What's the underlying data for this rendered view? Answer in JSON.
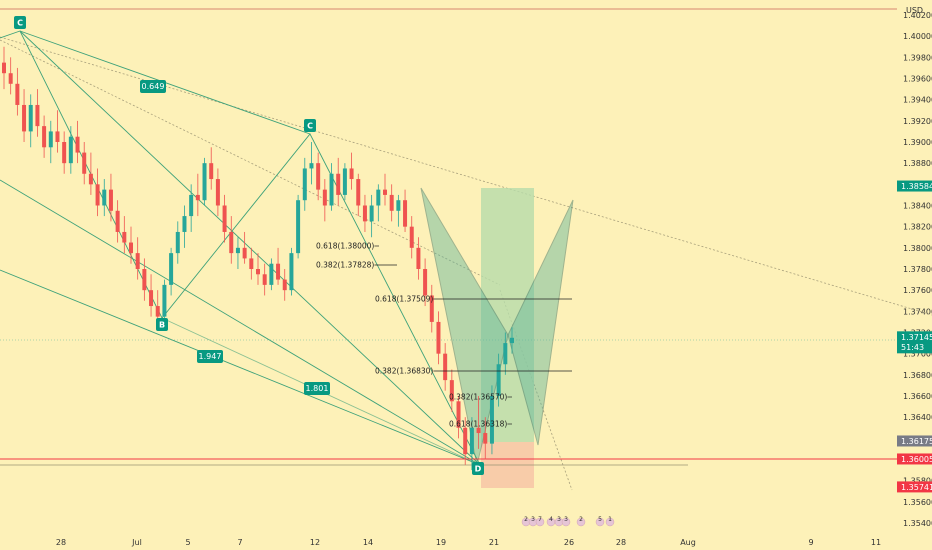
{
  "chart_data": {
    "type": "candlestick",
    "currency_label": "USD",
    "y_ticks": [
      "1.40200",
      "1.40000",
      "1.39800",
      "1.39600",
      "1.39400",
      "1.39200",
      "1.39000",
      "1.38800",
      "1.38600",
      "1.38400",
      "1.38200",
      "1.38000",
      "1.37800",
      "1.37600",
      "1.37400",
      "1.37200",
      "1.37000",
      "1.36800",
      "1.36600",
      "1.36400",
      "1.36200",
      "1.36000",
      "1.35800",
      "1.35600",
      "1.35400"
    ],
    "ylim": [
      1.354,
      1.402
    ],
    "x_ticks": [
      "28",
      "Jul",
      "5",
      "7",
      "12",
      "14",
      "19",
      "21",
      "26",
      "28",
      "Aug",
      "9",
      "11"
    ],
    "price_tags": [
      {
        "value": "1.38584",
        "price": 1.38584,
        "color": "#089981"
      },
      {
        "value": "1.37145",
        "sub": "51:43",
        "price": 1.37145,
        "color": "#089981"
      },
      {
        "value": "1.36175",
        "price": 1.36175,
        "color": "#787b86"
      },
      {
        "value": "1.36005",
        "price": 1.36005,
        "color": "#f23645"
      },
      {
        "value": "1.35741",
        "price": 1.35741,
        "color": "#f23645"
      }
    ],
    "point_labels": [
      "C",
      "C",
      "B",
      "D"
    ],
    "ratio_labels": [
      "0.649",
      "1.947",
      "1.801"
    ],
    "fib_labels": [
      "0.618(1.38000)",
      "0.382(1.37828)",
      "0.618(1.37509)",
      "0.382(1.36830)",
      "0.382(1.36570)",
      "0.618(1.36318)"
    ],
    "events": [
      "2",
      "3",
      "7",
      "4",
      "3",
      "3",
      "2",
      "5",
      "1"
    ],
    "candles": [
      [
        1.3975,
        1.399,
        1.395,
        1.3965
      ],
      [
        1.3965,
        1.398,
        1.3945,
        1.3955
      ],
      [
        1.3955,
        1.397,
        1.3925,
        1.3935
      ],
      [
        1.3935,
        1.395,
        1.39,
        1.391
      ],
      [
        1.391,
        1.3945,
        1.3895,
        1.3935
      ],
      [
        1.3935,
        1.395,
        1.3905,
        1.3915
      ],
      [
        1.3915,
        1.3925,
        1.3885,
        1.3895
      ],
      [
        1.3895,
        1.392,
        1.388,
        1.391
      ],
      [
        1.391,
        1.393,
        1.389,
        1.39
      ],
      [
        1.39,
        1.391,
        1.387,
        1.388
      ],
      [
        1.388,
        1.3915,
        1.387,
        1.3905
      ],
      [
        1.3905,
        1.392,
        1.388,
        1.389
      ],
      [
        1.389,
        1.39,
        1.386,
        1.387
      ],
      [
        1.387,
        1.389,
        1.385,
        1.386
      ],
      [
        1.386,
        1.3875,
        1.383,
        1.384
      ],
      [
        1.384,
        1.3865,
        1.383,
        1.3855
      ],
      [
        1.3855,
        1.387,
        1.3825,
        1.3835
      ],
      [
        1.3835,
        1.3845,
        1.3805,
        1.3815
      ],
      [
        1.3815,
        1.383,
        1.3795,
        1.3805
      ],
      [
        1.3805,
        1.382,
        1.3785,
        1.3795
      ],
      [
        1.3795,
        1.381,
        1.377,
        1.378
      ],
      [
        1.378,
        1.379,
        1.375,
        1.376
      ],
      [
        1.376,
        1.3775,
        1.3735,
        1.3745
      ],
      [
        1.3745,
        1.376,
        1.3725,
        1.3735
      ],
      [
        1.3735,
        1.377,
        1.373,
        1.3765
      ],
      [
        1.3765,
        1.38,
        1.3755,
        1.3795
      ],
      [
        1.3795,
        1.3825,
        1.3785,
        1.3815
      ],
      [
        1.3815,
        1.384,
        1.38,
        1.383
      ],
      [
        1.383,
        1.386,
        1.3815,
        1.385
      ],
      [
        1.385,
        1.387,
        1.383,
        1.3845
      ],
      [
        1.3845,
        1.3885,
        1.384,
        1.388
      ],
      [
        1.388,
        1.3895,
        1.3855,
        1.3865
      ],
      [
        1.3865,
        1.3875,
        1.383,
        1.384
      ],
      [
        1.384,
        1.385,
        1.3805,
        1.3815
      ],
      [
        1.3815,
        1.383,
        1.3785,
        1.3795
      ],
      [
        1.3795,
        1.381,
        1.378,
        1.38
      ],
      [
        1.38,
        1.3815,
        1.3785,
        1.379
      ],
      [
        1.379,
        1.38,
        1.377,
        1.378
      ],
      [
        1.378,
        1.3795,
        1.3765,
        1.3775
      ],
      [
        1.3775,
        1.3785,
        1.3755,
        1.3765
      ],
      [
        1.3765,
        1.379,
        1.376,
        1.3785
      ],
      [
        1.3785,
        1.38,
        1.3765,
        1.377
      ],
      [
        1.377,
        1.378,
        1.375,
        1.376
      ],
      [
        1.376,
        1.38,
        1.3755,
        1.3795
      ],
      [
        1.3795,
        1.385,
        1.379,
        1.3845
      ],
      [
        1.3845,
        1.3885,
        1.3835,
        1.3875
      ],
      [
        1.3875,
        1.39,
        1.386,
        1.388
      ],
      [
        1.388,
        1.389,
        1.3845,
        1.3855
      ],
      [
        1.3855,
        1.3865,
        1.3825,
        1.384
      ],
      [
        1.384,
        1.388,
        1.3835,
        1.387
      ],
      [
        1.387,
        1.3885,
        1.384,
        1.385
      ],
      [
        1.385,
        1.388,
        1.3845,
        1.3875
      ],
      [
        1.3875,
        1.389,
        1.3855,
        1.3865
      ],
      [
        1.3865,
        1.387,
        1.383,
        1.384
      ],
      [
        1.384,
        1.385,
        1.3815,
        1.3825
      ],
      [
        1.3825,
        1.385,
        1.381,
        1.384
      ],
      [
        1.384,
        1.386,
        1.3825,
        1.3855
      ],
      [
        1.3855,
        1.387,
        1.384,
        1.385
      ],
      [
        1.385,
        1.386,
        1.3825,
        1.3835
      ],
      [
        1.3835,
        1.385,
        1.382,
        1.3845
      ],
      [
        1.3845,
        1.3855,
        1.3815,
        1.382
      ],
      [
        1.382,
        1.383,
        1.379,
        1.38
      ],
      [
        1.38,
        1.381,
        1.377,
        1.378
      ],
      [
        1.378,
        1.379,
        1.3745,
        1.3755
      ],
      [
        1.3755,
        1.3765,
        1.372,
        1.373
      ],
      [
        1.373,
        1.374,
        1.369,
        1.37
      ],
      [
        1.37,
        1.371,
        1.3665,
        1.3675
      ],
      [
        1.3675,
        1.3685,
        1.3645,
        1.3655
      ],
      [
        1.3655,
        1.366,
        1.362,
        1.363
      ],
      [
        1.363,
        1.364,
        1.3595,
        1.3605
      ],
      [
        1.3605,
        1.364,
        1.359,
        1.363
      ],
      [
        1.363,
        1.366,
        1.361,
        1.3625
      ],
      [
        1.3625,
        1.364,
        1.36,
        1.3615
      ],
      [
        1.3615,
        1.367,
        1.3605,
        1.366
      ],
      [
        1.366,
        1.37,
        1.365,
        1.369
      ],
      [
        1.369,
        1.372,
        1.368,
        1.371
      ],
      [
        1.371,
        1.3725,
        1.37,
        1.3715
      ]
    ]
  }
}
